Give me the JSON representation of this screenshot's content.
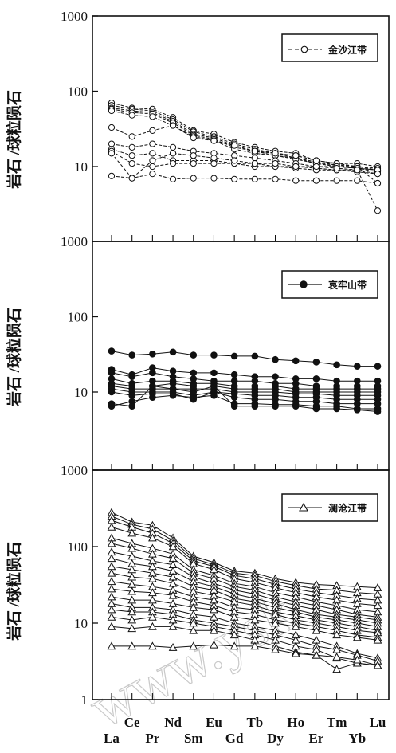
{
  "panels": [
    {
      "yticks": [
        {
          "value": 1000,
          "label": "1000"
        },
        {
          "value": 100,
          "label": "100"
        },
        {
          "value": 10,
          "label": "10"
        }
      ]
    },
    {
      "yticks": [
        {
          "value": 1000,
          "label": "1000"
        },
        {
          "value": 100,
          "label": "100"
        },
        {
          "value": 10,
          "label": "10"
        }
      ]
    },
    {
      "yticks": [
        {
          "value": 1000,
          "label": "1000"
        },
        {
          "value": 100,
          "label": "100"
        },
        {
          "value": 10,
          "label": "10"
        },
        {
          "value": 1,
          "label": "1"
        }
      ]
    }
  ],
  "watermark": "www.ysk",
  "chart_data": [
    {
      "type": "line",
      "categories": [
        "La",
        "Ce",
        "Pr",
        "Nd",
        "Sm",
        "Eu",
        "Gd",
        "Tb",
        "Dy",
        "Ho",
        "Er",
        "Tm",
        "Yb",
        "Lu"
      ],
      "ylabel": "岩石 /球粒陨石",
      "yscale": "log",
      "ylim": [
        1,
        1000
      ],
      "marker": "open-circle",
      "legend": {
        "label": "金沙江带",
        "position": "top-right"
      },
      "series": [
        {
          "values": [
            70,
            60,
            58,
            45,
            30,
            27,
            21,
            18,
            16,
            15,
            12,
            11,
            11,
            10
          ]
        },
        {
          "values": [
            65,
            58,
            55,
            42,
            29,
            25,
            20,
            17,
            15,
            14,
            12,
            11,
            10,
            9.5
          ]
        },
        {
          "values": [
            60,
            55,
            52,
            40,
            27,
            24,
            19,
            16,
            15,
            13,
            11.5,
            10.5,
            10,
            9
          ]
        },
        {
          "values": [
            58,
            52,
            50,
            38,
            26,
            23,
            18,
            16,
            14,
            13,
            11,
            10.5,
            9.5,
            9
          ]
        },
        {
          "values": [
            55,
            48,
            46,
            35,
            25,
            22,
            17,
            15,
            14,
            12.5,
            11,
            10,
            9.5,
            8.5
          ]
        },
        {
          "values": [
            33,
            25,
            30,
            35,
            24,
            22,
            19,
            16,
            15,
            14,
            12,
            11,
            10,
            6
          ]
        },
        {
          "values": [
            20,
            18,
            20,
            18,
            16,
            15,
            14,
            13,
            12,
            11,
            10,
            10,
            9.5,
            9
          ]
        },
        {
          "values": [
            17,
            14,
            15,
            12,
            12,
            12,
            11,
            11,
            10,
            10,
            9.5,
            9,
            9,
            8
          ]
        },
        {
          "values": [
            16,
            11,
            10,
            11,
            11,
            11,
            11,
            10,
            10,
            9.5,
            9,
            9,
            8.5,
            8
          ]
        },
        {
          "values": [
            15,
            7,
            12,
            15,
            14,
            13,
            12,
            11,
            11,
            10,
            10,
            9.5,
            9,
            2.6
          ]
        },
        {
          "values": [
            7.5,
            7,
            8,
            6.8,
            7,
            7,
            6.8,
            6.8,
            6.8,
            6.5,
            6.5,
            6.5,
            6.5,
            6
          ]
        }
      ]
    },
    {
      "type": "line",
      "categories": [
        "La",
        "Ce",
        "Pr",
        "Nd",
        "Sm",
        "Eu",
        "Gd",
        "Tb",
        "Dy",
        "Ho",
        "Er",
        "Tm",
        "Yb",
        "Lu"
      ],
      "ylabel": "岩石 /球粒陨石",
      "yscale": "log",
      "ylim": [
        1,
        1000
      ],
      "marker": "filled-circle",
      "legend": {
        "label": "哀牢山带",
        "position": "top-right"
      },
      "series": [
        {
          "values": [
            35,
            31,
            32,
            34,
            31,
            31,
            30,
            30,
            27,
            26,
            25,
            23,
            22,
            22
          ]
        },
        {
          "values": [
            20,
            17,
            21,
            19,
            18,
            18,
            17,
            16,
            16,
            15,
            15,
            14,
            14,
            14
          ]
        },
        {
          "values": [
            18,
            16,
            18,
            16,
            15,
            14,
            14,
            14,
            13,
            13,
            12,
            12,
            12,
            12
          ]
        },
        {
          "values": [
            15,
            13,
            14,
            14,
            13,
            13,
            12,
            12,
            12,
            11,
            11,
            11,
            11,
            11
          ]
        },
        {
          "values": [
            13,
            12,
            12,
            13,
            12,
            12,
            11,
            11,
            11,
            10,
            10,
            10,
            10,
            10
          ]
        },
        {
          "values": [
            12,
            11,
            11,
            11,
            11,
            11,
            10,
            10,
            10,
            9.5,
            9.5,
            9,
            9,
            9
          ]
        },
        {
          "values": [
            11,
            10,
            10,
            10,
            9,
            10,
            9.5,
            9,
            9,
            8.5,
            8.5,
            8,
            8,
            8
          ]
        },
        {
          "values": [
            10,
            9,
            9.5,
            9.5,
            8,
            10,
            8.5,
            8,
            8,
            7.5,
            7.5,
            7,
            7,
            7
          ]
        },
        {
          "values": [
            6.5,
            7.5,
            8.5,
            9,
            8.5,
            9,
            7,
            7,
            6.8,
            6.8,
            6.5,
            6.5,
            6,
            6
          ]
        },
        {
          "values": [
            7,
            6.5,
            12,
            11,
            10,
            12,
            6.5,
            6.5,
            6.5,
            6.5,
            6,
            6,
            5.8,
            5.5
          ]
        }
      ]
    },
    {
      "type": "line",
      "categories": [
        "La",
        "Ce",
        "Pr",
        "Nd",
        "Sm",
        "Eu",
        "Gd",
        "Tb",
        "Dy",
        "Ho",
        "Er",
        "Tm",
        "Yb",
        "Lu"
      ],
      "ylabel": "岩石 /球粒陨石",
      "yscale": "log",
      "ylim": [
        1,
        1000
      ],
      "marker": "open-triangle",
      "legend": {
        "label": "澜沧江带",
        "position": "top-right"
      },
      "series": [
        {
          "values": [
            280,
            210,
            190,
            130,
            75,
            62,
            48,
            45,
            38,
            34,
            32,
            31,
            30,
            29
          ]
        },
        {
          "values": [
            250,
            195,
            170,
            120,
            70,
            58,
            45,
            42,
            35,
            31,
            28,
            27,
            25,
            24
          ]
        },
        {
          "values": [
            220,
            180,
            150,
            110,
            65,
            55,
            42,
            38,
            32,
            28,
            25,
            23,
            21,
            20
          ]
        },
        {
          "values": [
            180,
            150,
            130,
            100,
            60,
            50,
            38,
            34,
            29,
            25,
            22,
            20,
            18,
            17
          ]
        },
        {
          "values": [
            130,
            110,
            95,
            80,
            50,
            42,
            33,
            30,
            25,
            22,
            19,
            17,
            15,
            14
          ]
        },
        {
          "values": [
            110,
            95,
            80,
            70,
            45,
            38,
            30,
            27,
            22,
            19,
            17,
            15,
            13,
            12
          ]
        },
        {
          "values": [
            85,
            75,
            65,
            58,
            40,
            33,
            27,
            24,
            20,
            17,
            15,
            13,
            12,
            11
          ]
        },
        {
          "values": [
            70,
            60,
            55,
            48,
            35,
            30,
            24,
            21,
            18,
            15,
            13,
            12,
            11,
            10
          ]
        },
        {
          "values": [
            55,
            50,
            45,
            40,
            30,
            27,
            21,
            19,
            16,
            14,
            12,
            11,
            10,
            9
          ]
        },
        {
          "values": [
            45,
            40,
            38,
            33,
            26,
            23,
            19,
            17,
            14,
            12.5,
            11,
            10,
            9,
            8
          ]
        },
        {
          "values": [
            35,
            32,
            30,
            27,
            22,
            20,
            16,
            15,
            13,
            11,
            10,
            9,
            8,
            7.5
          ]
        },
        {
          "values": [
            28,
            26,
            25,
            23,
            19,
            17,
            14,
            13,
            11,
            10,
            9,
            8,
            7,
            6.5
          ]
        },
        {
          "values": [
            22,
            20,
            20,
            18,
            16,
            15,
            12,
            11,
            10,
            9,
            8,
            7,
            6.5,
            6
          ]
        },
        {
          "values": [
            18,
            16,
            16,
            15,
            13,
            12,
            10,
            9,
            8,
            7,
            6,
            5,
            4,
            3.5
          ]
        },
        {
          "values": [
            15,
            14,
            14,
            13,
            11,
            10,
            9,
            8,
            7,
            6,
            5,
            4.5,
            3.8,
            3.2
          ]
        },
        {
          "values": [
            12,
            11,
            12,
            11,
            10,
            9,
            8,
            7,
            6,
            5,
            4.5,
            3.5,
            3,
            2.8
          ]
        },
        {
          "values": [
            9,
            8.5,
            9,
            9,
            8,
            8,
            7,
            6,
            5,
            4.2,
            3.8,
            2.5,
            3,
            2.8
          ]
        },
        {
          "values": [
            5,
            5,
            5,
            4.8,
            5,
            5.2,
            5,
            5,
            4.5,
            4,
            3.8,
            3.6,
            3.3,
            2.8
          ]
        }
      ]
    }
  ]
}
